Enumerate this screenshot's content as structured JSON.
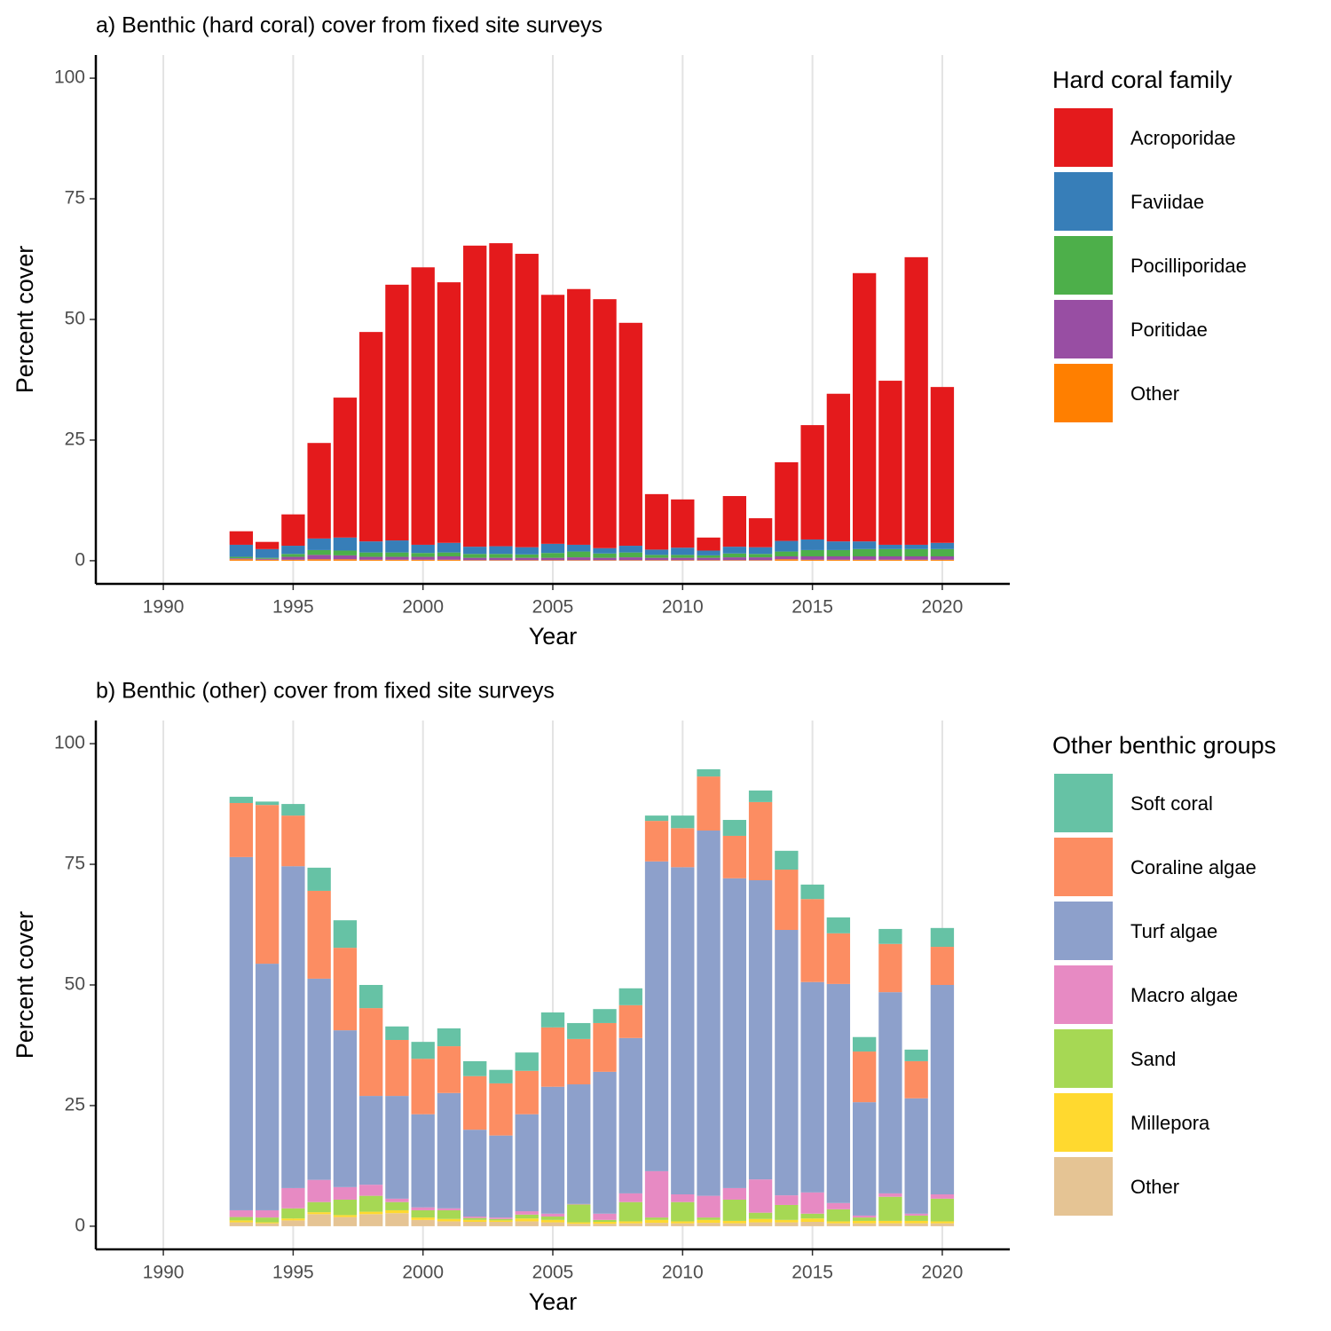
{
  "chart_data": [
    {
      "type": "bar",
      "stacked": true,
      "title": "a) Benthic (hard coral) cover from fixed site surveys",
      "xlabel": "Year",
      "ylabel": "Percent cover",
      "legend_title": "Hard coral family",
      "x": [
        1993,
        1994,
        1995,
        1996,
        1997,
        1998,
        1999,
        2000,
        2001,
        2002,
        2003,
        2004,
        2005,
        2006,
        2007,
        2008,
        2009,
        2010,
        2011,
        2012,
        2013,
        2014,
        2015,
        2016,
        2017,
        2018,
        2019,
        2020
      ],
      "series": [
        {
          "name": "Acroporidae",
          "color": "#e41a1c",
          "values": [
            2.8,
            1.5,
            6.5,
            19.8,
            29.0,
            43.4,
            53.0,
            57.5,
            54.0,
            62.4,
            62.8,
            60.8,
            51.6,
            53.0,
            51.6,
            46.2,
            11.5,
            10.0,
            2.7,
            10.5,
            6.0,
            16.3,
            23.7,
            30.6,
            55.6,
            34.0,
            59.6,
            32.3
          ]
        },
        {
          "name": "Faviidae",
          "color": "#377eb8",
          "values": [
            2.5,
            1.8,
            1.7,
            2.4,
            2.7,
            2.3,
            2.5,
            1.7,
            2.0,
            1.5,
            1.6,
            1.5,
            1.9,
            1.4,
            1.1,
            1.4,
            1.1,
            1.5,
            1.0,
            1.4,
            1.4,
            2.2,
            2.2,
            1.8,
            1.6,
            0.9,
            0.9,
            1.3
          ]
        },
        {
          "name": "Pocilliporidae",
          "color": "#4daf4a",
          "values": [
            0.3,
            0.2,
            0.6,
            1.0,
            1.0,
            0.9,
            0.9,
            0.8,
            0.8,
            0.8,
            0.8,
            0.7,
            1.0,
            1.2,
            0.9,
            1.0,
            0.6,
            0.6,
            0.5,
            0.8,
            0.7,
            1.0,
            1.3,
            1.3,
            1.5,
            1.5,
            1.5,
            1.5
          ]
        },
        {
          "name": "Poritidae",
          "color": "#984ea3",
          "values": [
            0.2,
            0.2,
            0.6,
            0.9,
            0.8,
            0.6,
            0.6,
            0.6,
            0.7,
            0.5,
            0.5,
            0.5,
            0.5,
            0.6,
            0.5,
            0.6,
            0.5,
            0.5,
            0.5,
            0.6,
            0.6,
            0.6,
            0.7,
            0.7,
            0.7,
            0.7,
            0.7,
            0.7
          ]
        },
        {
          "name": "Other",
          "color": "#ff7f00",
          "values": [
            0.3,
            0.2,
            0.2,
            0.3,
            0.3,
            0.2,
            0.2,
            0.2,
            0.2,
            0.1,
            0.1,
            0.1,
            0.1,
            0.1,
            0.1,
            0.1,
            0.1,
            0.1,
            0.1,
            0.1,
            0.1,
            0.3,
            0.2,
            0.2,
            0.2,
            0.2,
            0.2,
            0.2
          ]
        }
      ],
      "xlim": [
        1987.4,
        2022.6
      ],
      "ylim": [
        -4.8,
        104.8
      ],
      "xticks": [
        1990,
        1995,
        2000,
        2005,
        2010,
        2015,
        2020
      ],
      "yticks": [
        0,
        25,
        50,
        75,
        100
      ],
      "grid": "x"
    },
    {
      "type": "bar",
      "stacked": true,
      "title": "b) Benthic (other) cover from fixed site surveys",
      "xlabel": "Year",
      "ylabel": "Percent cover",
      "legend_title": "Other benthic groups",
      "x": [
        1993,
        1994,
        1995,
        1996,
        1997,
        1998,
        1999,
        2000,
        2001,
        2002,
        2003,
        2004,
        2005,
        2006,
        2007,
        2008,
        2009,
        2010,
        2011,
        2012,
        2013,
        2014,
        2015,
        2016,
        2017,
        2018,
        2019,
        2020
      ],
      "series": [
        {
          "name": "Soft coral",
          "color": "#66c2a5",
          "values": [
            1.3,
            0.7,
            2.4,
            4.8,
            5.7,
            4.8,
            2.8,
            3.5,
            3.7,
            3.1,
            2.8,
            3.8,
            3.1,
            3.3,
            2.9,
            3.5,
            1.1,
            2.6,
            1.5,
            3.3,
            2.4,
            3.9,
            3.0,
            3.3,
            3.0,
            3.1,
            2.4,
            3.9
          ]
        },
        {
          "name": "Coraline algae",
          "color": "#fc8d62",
          "values": [
            11.2,
            32.9,
            10.5,
            18.2,
            17.1,
            18.2,
            11.6,
            11.5,
            9.7,
            11.1,
            10.8,
            9.0,
            12.3,
            9.4,
            10.1,
            6.8,
            8.4,
            8.1,
            11.2,
            8.8,
            16.2,
            12.5,
            17.2,
            10.5,
            10.5,
            10.0,
            7.7,
            7.9
          ]
        },
        {
          "name": "Turf algae",
          "color": "#8da0cb",
          "values": [
            73.2,
            51.1,
            66.7,
            41.7,
            32.5,
            18.4,
            21.3,
            19.3,
            23.9,
            18.0,
            17.0,
            20.1,
            26.3,
            24.8,
            29.4,
            32.2,
            64.2,
            67.8,
            75.7,
            64.2,
            62.0,
            55.0,
            43.6,
            45.4,
            23.5,
            41.7,
            23.9,
            43.4
          ]
        },
        {
          "name": "Macro algae",
          "color": "#e78ac3",
          "values": [
            1.4,
            1.5,
            4.2,
            4.6,
            2.6,
            2.3,
            0.7,
            0.6,
            0.4,
            0.3,
            0.3,
            0.7,
            0.6,
            0.1,
            1.3,
            1.8,
            9.6,
            1.6,
            4.5,
            2.4,
            6.9,
            2.0,
            4.4,
            1.3,
            0.4,
            0.7,
            0.4,
            0.9
          ]
        },
        {
          "name": "Sand",
          "color": "#a6d854",
          "values": [
            0.7,
            1.0,
            2.1,
            2.1,
            3.2,
            3.3,
            1.7,
            1.5,
            1.8,
            0.4,
            0.3,
            0.8,
            0.7,
            3.7,
            0.4,
            4.0,
            0.5,
            4.0,
            0.5,
            4.4,
            1.3,
            3.1,
            1.0,
            2.5,
            0.7,
            5.0,
            1.1,
            4.7
          ]
        },
        {
          "name": "Millepora",
          "color": "#ffd92f",
          "values": [
            0.4,
            0.2,
            0.4,
            0.4,
            0.4,
            0.5,
            0.6,
            0.5,
            0.5,
            0.4,
            0.3,
            0.6,
            0.5,
            0.3,
            0.4,
            0.4,
            0.6,
            0.4,
            0.6,
            0.5,
            0.7,
            0.5,
            0.7,
            0.4,
            0.5,
            0.5,
            0.5,
            0.4
          ]
        },
        {
          "name": "Other",
          "color": "#e5c494",
          "values": [
            0.8,
            0.6,
            1.2,
            2.5,
            1.9,
            2.5,
            2.7,
            1.3,
            1.0,
            0.9,
            0.9,
            1.0,
            0.8,
            0.5,
            0.5,
            0.6,
            0.7,
            0.6,
            0.7,
            0.6,
            0.8,
            0.8,
            0.9,
            0.6,
            0.6,
            0.6,
            0.6,
            0.6
          ]
        }
      ],
      "xlim": [
        1987.4,
        2022.6
      ],
      "ylim": [
        -4.8,
        104.8
      ],
      "xticks": [
        1990,
        1995,
        2000,
        2005,
        2010,
        2015,
        2020
      ],
      "yticks": [
        0,
        25,
        50,
        75,
        100
      ],
      "grid": "x"
    }
  ]
}
